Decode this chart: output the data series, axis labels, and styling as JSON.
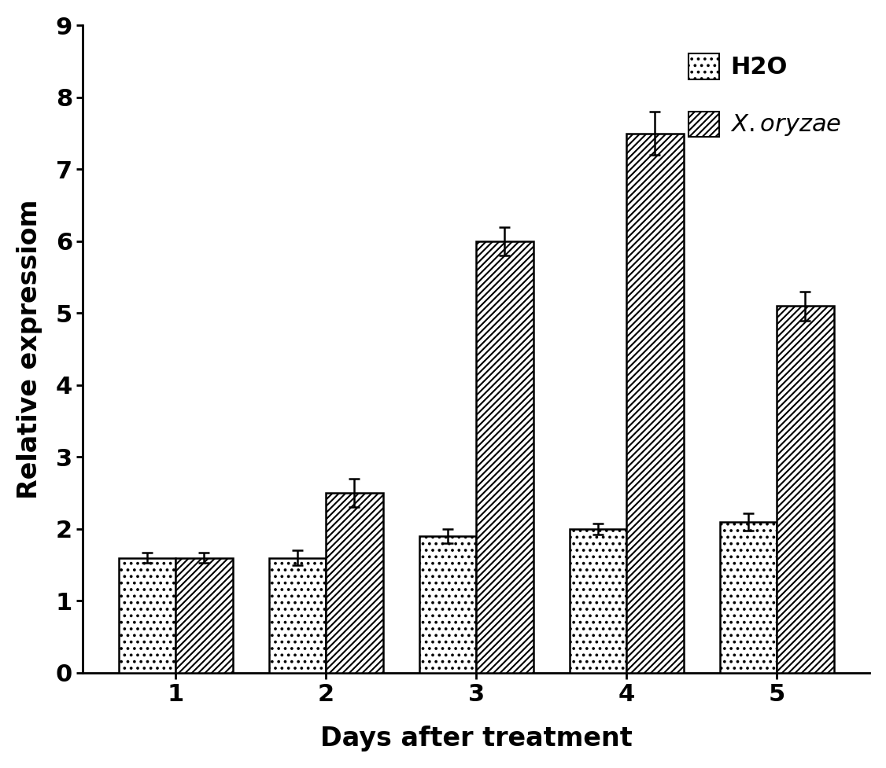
{
  "days": [
    1,
    2,
    3,
    4,
    5
  ],
  "h2o_values": [
    1.6,
    1.6,
    1.9,
    2.0,
    2.1
  ],
  "xoo_values": [
    1.6,
    2.5,
    6.0,
    7.5,
    5.1
  ],
  "h2o_errors": [
    0.07,
    0.1,
    0.1,
    0.08,
    0.12
  ],
  "xoo_errors": [
    0.07,
    0.2,
    0.2,
    0.3,
    0.2
  ],
  "xlabel": "Days after treatment",
  "ylabel": "Relative expressiom",
  "ylim": [
    0,
    9
  ],
  "yticks": [
    0,
    1,
    2,
    3,
    4,
    5,
    6,
    7,
    8,
    9
  ],
  "bar_width": 0.38,
  "legend_h2o": "H2O",
  "edgecolor": "black",
  "bar_linewidth": 1.8,
  "error_capsize": 5,
  "error_linewidth": 1.8
}
